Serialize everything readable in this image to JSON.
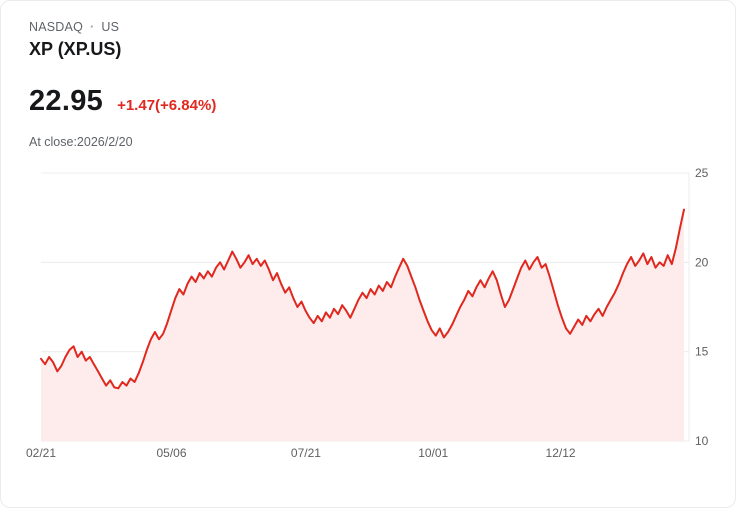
{
  "header": {
    "exchange": "NASDAQ",
    "separator": "·",
    "region": "US",
    "title": "XP (XP.US)",
    "price": "22.95",
    "change": "+1.47(+6.84%)",
    "as_of": "At close:2026/2/20"
  },
  "colors": {
    "line": "#e0281f",
    "fill": "#fdeceb",
    "grid": "#ececec",
    "axis_text": "#606060",
    "change_text": "#e0281f"
  },
  "chart_data": {
    "type": "area",
    "title": "XP (XP.US) one-year price chart",
    "ylim": [
      10,
      25
    ],
    "y_ticks": [
      10,
      15,
      20,
      25
    ],
    "x_tick_labels": [
      "02/21",
      "05/06",
      "07/21",
      "10/01",
      "12/12"
    ],
    "x_tick_positions": [
      0.0,
      0.203,
      0.412,
      0.61,
      0.808
    ],
    "last_price": 22.95,
    "values": [
      14.6,
      14.3,
      14.7,
      14.4,
      13.9,
      14.2,
      14.7,
      15.1,
      15.3,
      14.7,
      15.0,
      14.5,
      14.7,
      14.3,
      13.9,
      13.5,
      13.1,
      13.4,
      13.0,
      12.95,
      13.3,
      13.1,
      13.5,
      13.3,
      13.8,
      14.4,
      15.1,
      15.7,
      16.1,
      15.7,
      16.0,
      16.6,
      17.3,
      18.0,
      18.5,
      18.2,
      18.8,
      19.2,
      18.9,
      19.4,
      19.1,
      19.5,
      19.2,
      19.7,
      20.0,
      19.6,
      20.1,
      20.6,
      20.2,
      19.7,
      20.0,
      20.4,
      19.9,
      20.2,
      19.8,
      20.1,
      19.6,
      19.0,
      19.4,
      18.8,
      18.3,
      18.6,
      18.0,
      17.5,
      17.8,
      17.3,
      16.9,
      16.6,
      17.0,
      16.7,
      17.2,
      16.9,
      17.4,
      17.1,
      17.6,
      17.3,
      16.9,
      17.4,
      17.9,
      18.3,
      18.0,
      18.5,
      18.2,
      18.7,
      18.4,
      18.9,
      18.6,
      19.2,
      19.7,
      20.2,
      19.8,
      19.2,
      18.6,
      17.9,
      17.3,
      16.7,
      16.2,
      15.9,
      16.3,
      15.8,
      16.1,
      16.5,
      17.0,
      17.5,
      17.9,
      18.4,
      18.1,
      18.6,
      19.0,
      18.6,
      19.1,
      19.5,
      19.0,
      18.2,
      17.5,
      17.9,
      18.5,
      19.1,
      19.7,
      20.1,
      19.6,
      20.0,
      20.3,
      19.7,
      19.9,
      19.2,
      18.4,
      17.6,
      16.9,
      16.3,
      16.0,
      16.4,
      16.8,
      16.5,
      17.0,
      16.7,
      17.1,
      17.4,
      17.0,
      17.5,
      17.9,
      18.3,
      18.8,
      19.4,
      19.9,
      20.3,
      19.8,
      20.1,
      20.5,
      19.9,
      20.3,
      19.7,
      20.0,
      19.8,
      20.4,
      19.9,
      20.8,
      21.9,
      22.95
    ]
  }
}
